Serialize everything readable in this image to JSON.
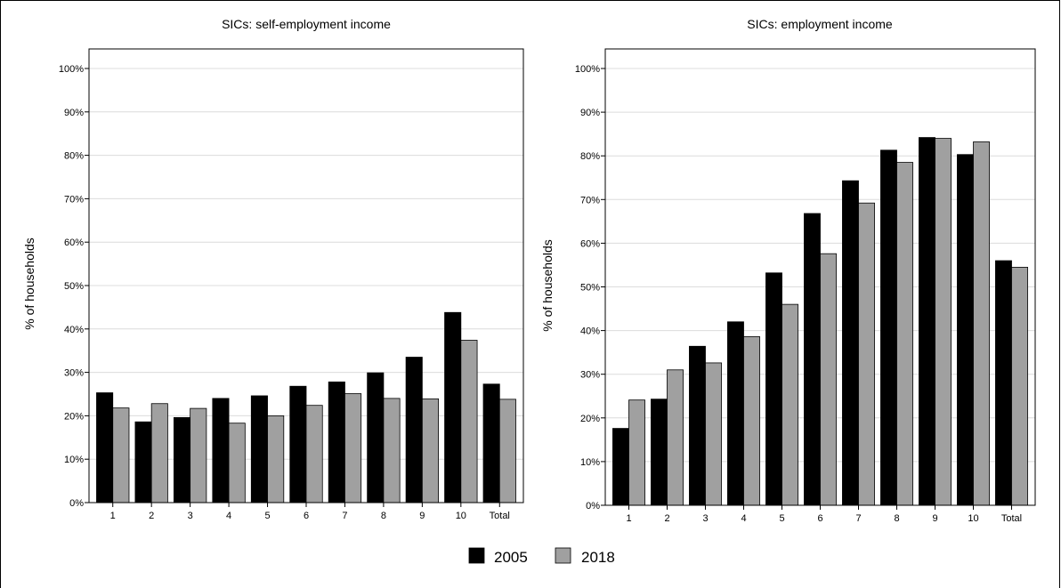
{
  "legend": {
    "items": [
      "2005",
      "2018"
    ]
  },
  "colors": {
    "2005": "#000000",
    "2018": "#a0a0a0"
  },
  "chart_data": [
    {
      "type": "bar",
      "title": "SICs: self-employment income",
      "ylabel": "% of households",
      "xlabel": "",
      "ylim": [
        0,
        100
      ],
      "yticks": [
        "0%",
        "10%",
        "20%",
        "30%",
        "40%",
        "50%",
        "60%",
        "70%",
        "80%",
        "90%",
        "100%"
      ],
      "categories": [
        "1",
        "2",
        "3",
        "4",
        "5",
        "6",
        "7",
        "8",
        "9",
        "10",
        "Total"
      ],
      "grid": true,
      "legend_position": "bottom",
      "series": [
        {
          "name": "2005",
          "values": [
            25.3,
            18.6,
            19.6,
            24.0,
            24.6,
            26.8,
            27.8,
            29.9,
            33.5,
            43.8,
            27.3
          ]
        },
        {
          "name": "2018",
          "values": [
            21.8,
            22.8,
            21.7,
            18.3,
            20.0,
            22.4,
            25.1,
            24.0,
            23.9,
            37.4,
            23.8
          ]
        }
      ]
    },
    {
      "type": "bar",
      "title": "SICs: employment income",
      "ylabel": "% of households",
      "xlabel": "",
      "ylim": [
        0,
        100
      ],
      "yticks": [
        "0%",
        "10%",
        "20%",
        "30%",
        "40%",
        "50%",
        "60%",
        "70%",
        "80%",
        "90%",
        "100%"
      ],
      "categories": [
        "1",
        "2",
        "3",
        "4",
        "5",
        "6",
        "7",
        "8",
        "9",
        "10",
        "Total"
      ],
      "grid": true,
      "legend_position": "bottom",
      "series": [
        {
          "name": "2005",
          "values": [
            17.6,
            24.3,
            36.4,
            42.0,
            53.2,
            66.8,
            74.3,
            81.3,
            84.2,
            80.3,
            56.0
          ]
        },
        {
          "name": "2018",
          "values": [
            24.1,
            31.0,
            32.6,
            38.6,
            46.0,
            57.6,
            69.2,
            78.5,
            84.0,
            83.2,
            54.5
          ]
        }
      ]
    }
  ]
}
